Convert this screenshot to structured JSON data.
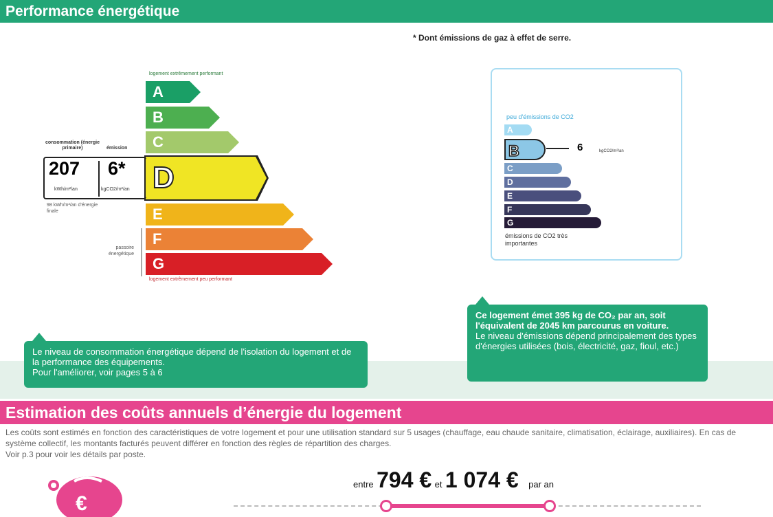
{
  "energy": {
    "title": "Performance énergétique",
    "note": "* Dont émissions de gaz à effet de serre.",
    "top_label": "logement extrêmement performant",
    "bottom_label": "logement extrêmement peu performant",
    "classes": [
      {
        "letter": "A",
        "color": "#1a9f66"
      },
      {
        "letter": "B",
        "color": "#4daf50"
      },
      {
        "letter": "C",
        "color": "#a3c96b"
      },
      {
        "letter": "D",
        "color": "#f0e524"
      },
      {
        "letter": "E",
        "color": "#f0b41a"
      },
      {
        "letter": "F",
        "color": "#eb8236"
      },
      {
        "letter": "G",
        "color": "#d81f26"
      }
    ],
    "current_class": "D",
    "consumption_label": "consommation (énergie primaire)",
    "emission_label": "émission",
    "consumption": "207",
    "consumption_unit": "kWh/m²/an",
    "emission": "6*",
    "emission_unit": "kgCO2/m²/an",
    "final_energy": "98 kWh/m²/an d'énergie finale",
    "passoire": "passoire énergétique",
    "callout": "Le niveau de consommation énergétique dépend de l'isolation du logement et de la performance des équipements.\nPour l'améliorer, voir pages 5 à 6"
  },
  "co2": {
    "top_label": "peu d'émissions de CO2",
    "bottom_label": "émissions de CO2 très importantes",
    "classes": [
      {
        "letter": "A",
        "color": "#a3dbf3"
      },
      {
        "letter": "B",
        "color": "#8cc7e6"
      },
      {
        "letter": "C",
        "color": "#7b9ec6"
      },
      {
        "letter": "D",
        "color": "#5f6f9f"
      },
      {
        "letter": "E",
        "color": "#4a4f7d"
      },
      {
        "letter": "F",
        "color": "#363659"
      },
      {
        "letter": "G",
        "color": "#251b37"
      }
    ],
    "current_class": "B",
    "value": "6",
    "unit": "kgCO2/m²/an",
    "callout_bold": "Ce logement émet 395  kg de CO₂ par an, soit l'équivalent de 2045 km parcourus en voiture.",
    "callout": "Le niveau d'émissions dépend principalement des types d'énergies utilisées (bois, électricité, gaz, fioul, etc.)"
  },
  "costs": {
    "title": "Estimation des coûts annuels d’énergie du logement",
    "description": "Les coûts sont estimés en fonction des caractéristiques de votre logement et pour une utilisation standard sur 5 usages (chauffage, eau chaude sanitaire, climatisation, éclairage, auxiliaires). En cas de système collectif, les montants facturés peuvent différer en fonction des règles de répartition des charges.\nVoir p.3 pour voir les détails par poste.",
    "between": "entre",
    "min": "794 €",
    "and": "et",
    "max": "1 074 €",
    "per_year": "par an",
    "accent": "#e6458e"
  }
}
